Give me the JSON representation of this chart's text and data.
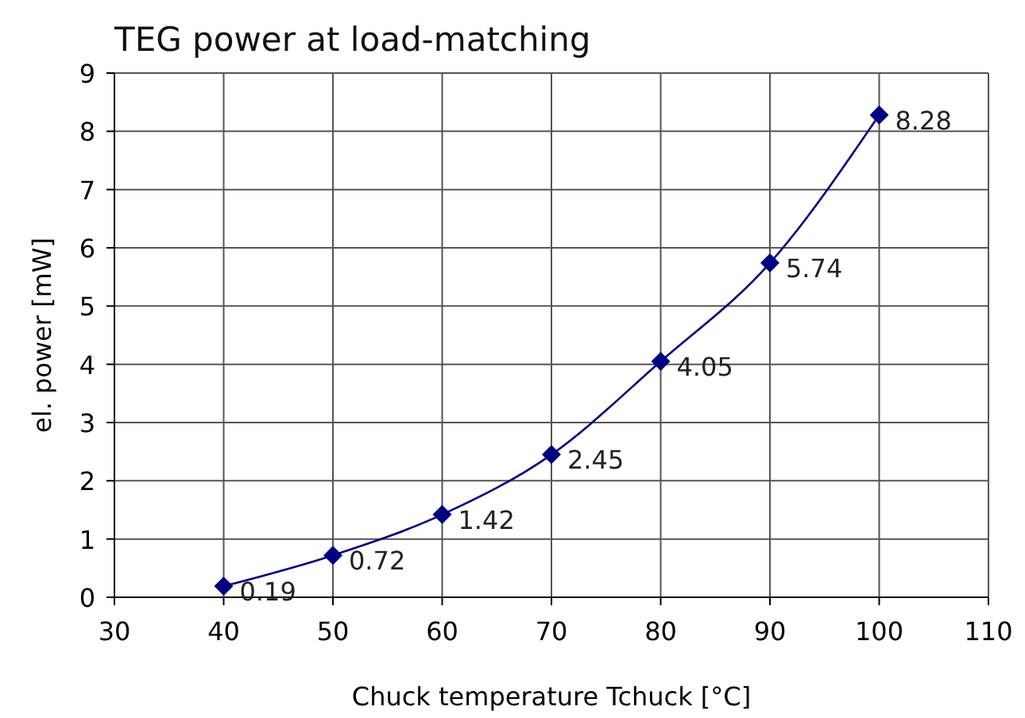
{
  "chart_data": {
    "type": "line",
    "title": "TEG power at load-matching",
    "xlabel": "Chuck temperature Tchuck [°C]",
    "ylabel": "el. power [mW]",
    "x": [
      40,
      50,
      60,
      70,
      80,
      90,
      100
    ],
    "series": [
      {
        "color": "#000080",
        "values": [
          0.19,
          0.72,
          1.42,
          2.45,
          4.05,
          5.74,
          8.28
        ]
      }
    ],
    "xlim": [
      30,
      110
    ],
    "xticks": [
      30,
      40,
      50,
      60,
      70,
      80,
      90,
      100,
      110
    ],
    "ylim": [
      0,
      9
    ],
    "yticks": [
      0,
      1,
      2,
      3,
      4,
      5,
      6,
      7,
      8,
      9
    ],
    "grid": true,
    "marker": "diamond",
    "line_style": "solid",
    "data_labels": true
  }
}
